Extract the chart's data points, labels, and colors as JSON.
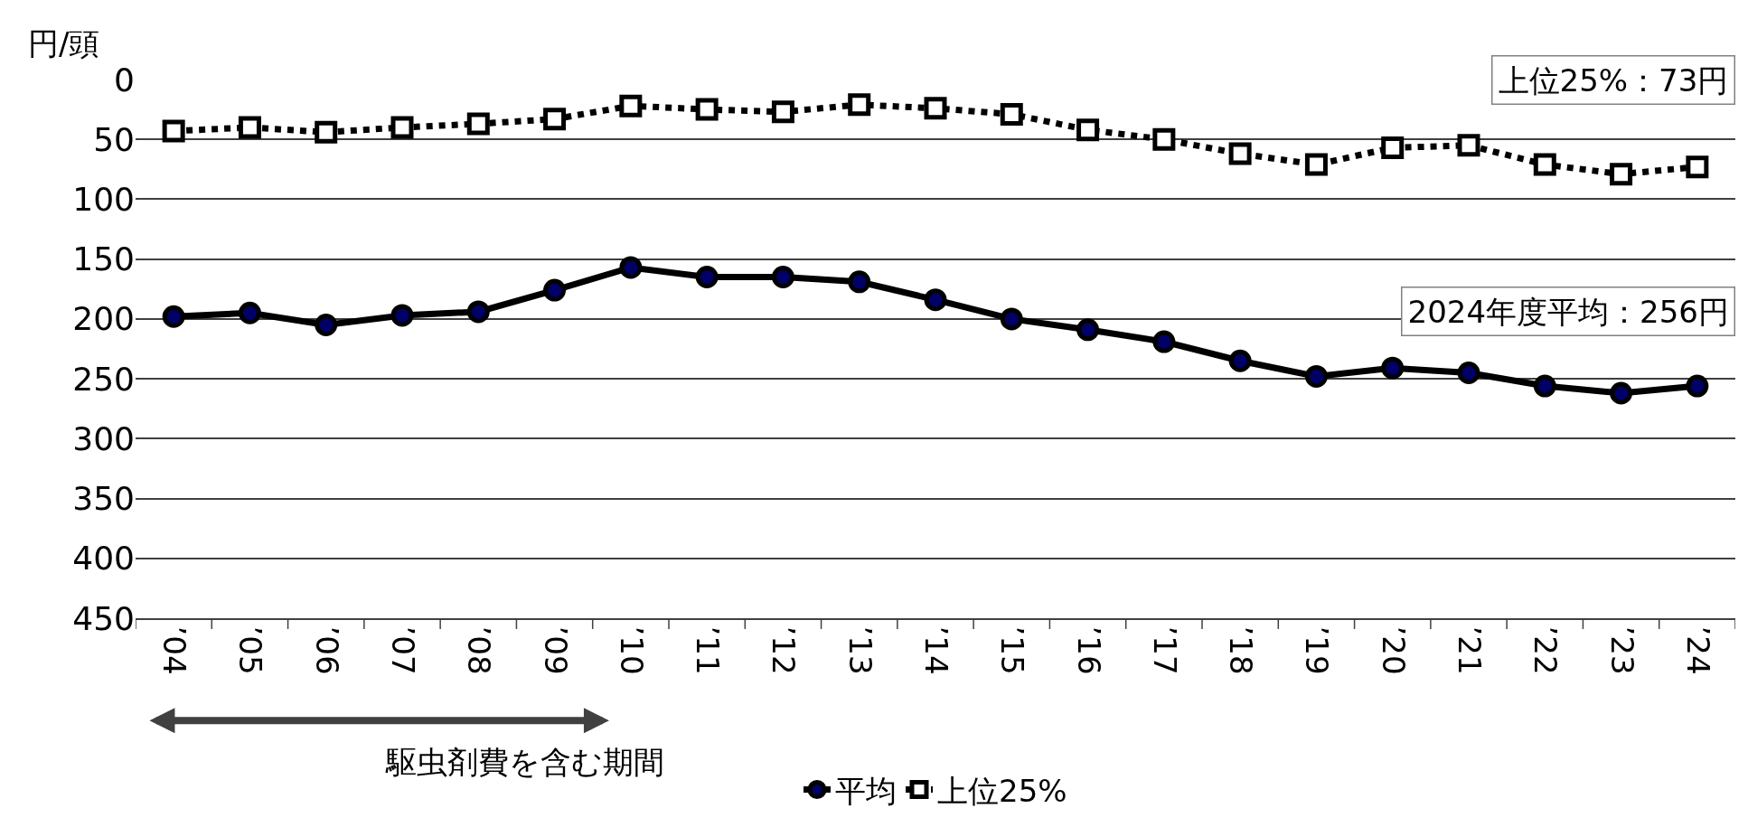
{
  "chart_data": {
    "type": "line",
    "ylabel": "円/頭",
    "categories": [
      "’04",
      "’05",
      "’06",
      "’07",
      "’08",
      "’09",
      "’10",
      "’11",
      "’12",
      "’13",
      "’14",
      "’15",
      "’16",
      "’17",
      "’18",
      "’19",
      "’20",
      "’21",
      "’22",
      "’23",
      "’24"
    ],
    "series": [
      {
        "name": "平均",
        "color": "#000000",
        "marker": "circle",
        "line_style": "solid",
        "values": [
          198,
          195,
          205,
          197,
          194,
          176,
          157,
          165,
          165,
          169,
          184,
          200,
          209,
          219,
          235,
          248,
          241,
          245,
          256,
          262,
          256
        ]
      },
      {
        "name": "上位25%",
        "color": "#000000",
        "marker": "square",
        "line_style": "dotted",
        "values": [
          43,
          40,
          44,
          40,
          37,
          33,
          22,
          25,
          27,
          21,
          24,
          29,
          42,
          50,
          62,
          71,
          57,
          55,
          71,
          79,
          73
        ]
      }
    ],
    "ylim": [
      450,
      0
    ],
    "yticks": [
      0,
      50,
      100,
      150,
      200,
      250,
      300,
      350,
      400,
      450
    ],
    "grid": "y",
    "legend": "bottom",
    "annotations": [
      "上位25%：73円",
      "2024年度平均：256円",
      "駆虫剤費を含む期間"
    ]
  }
}
